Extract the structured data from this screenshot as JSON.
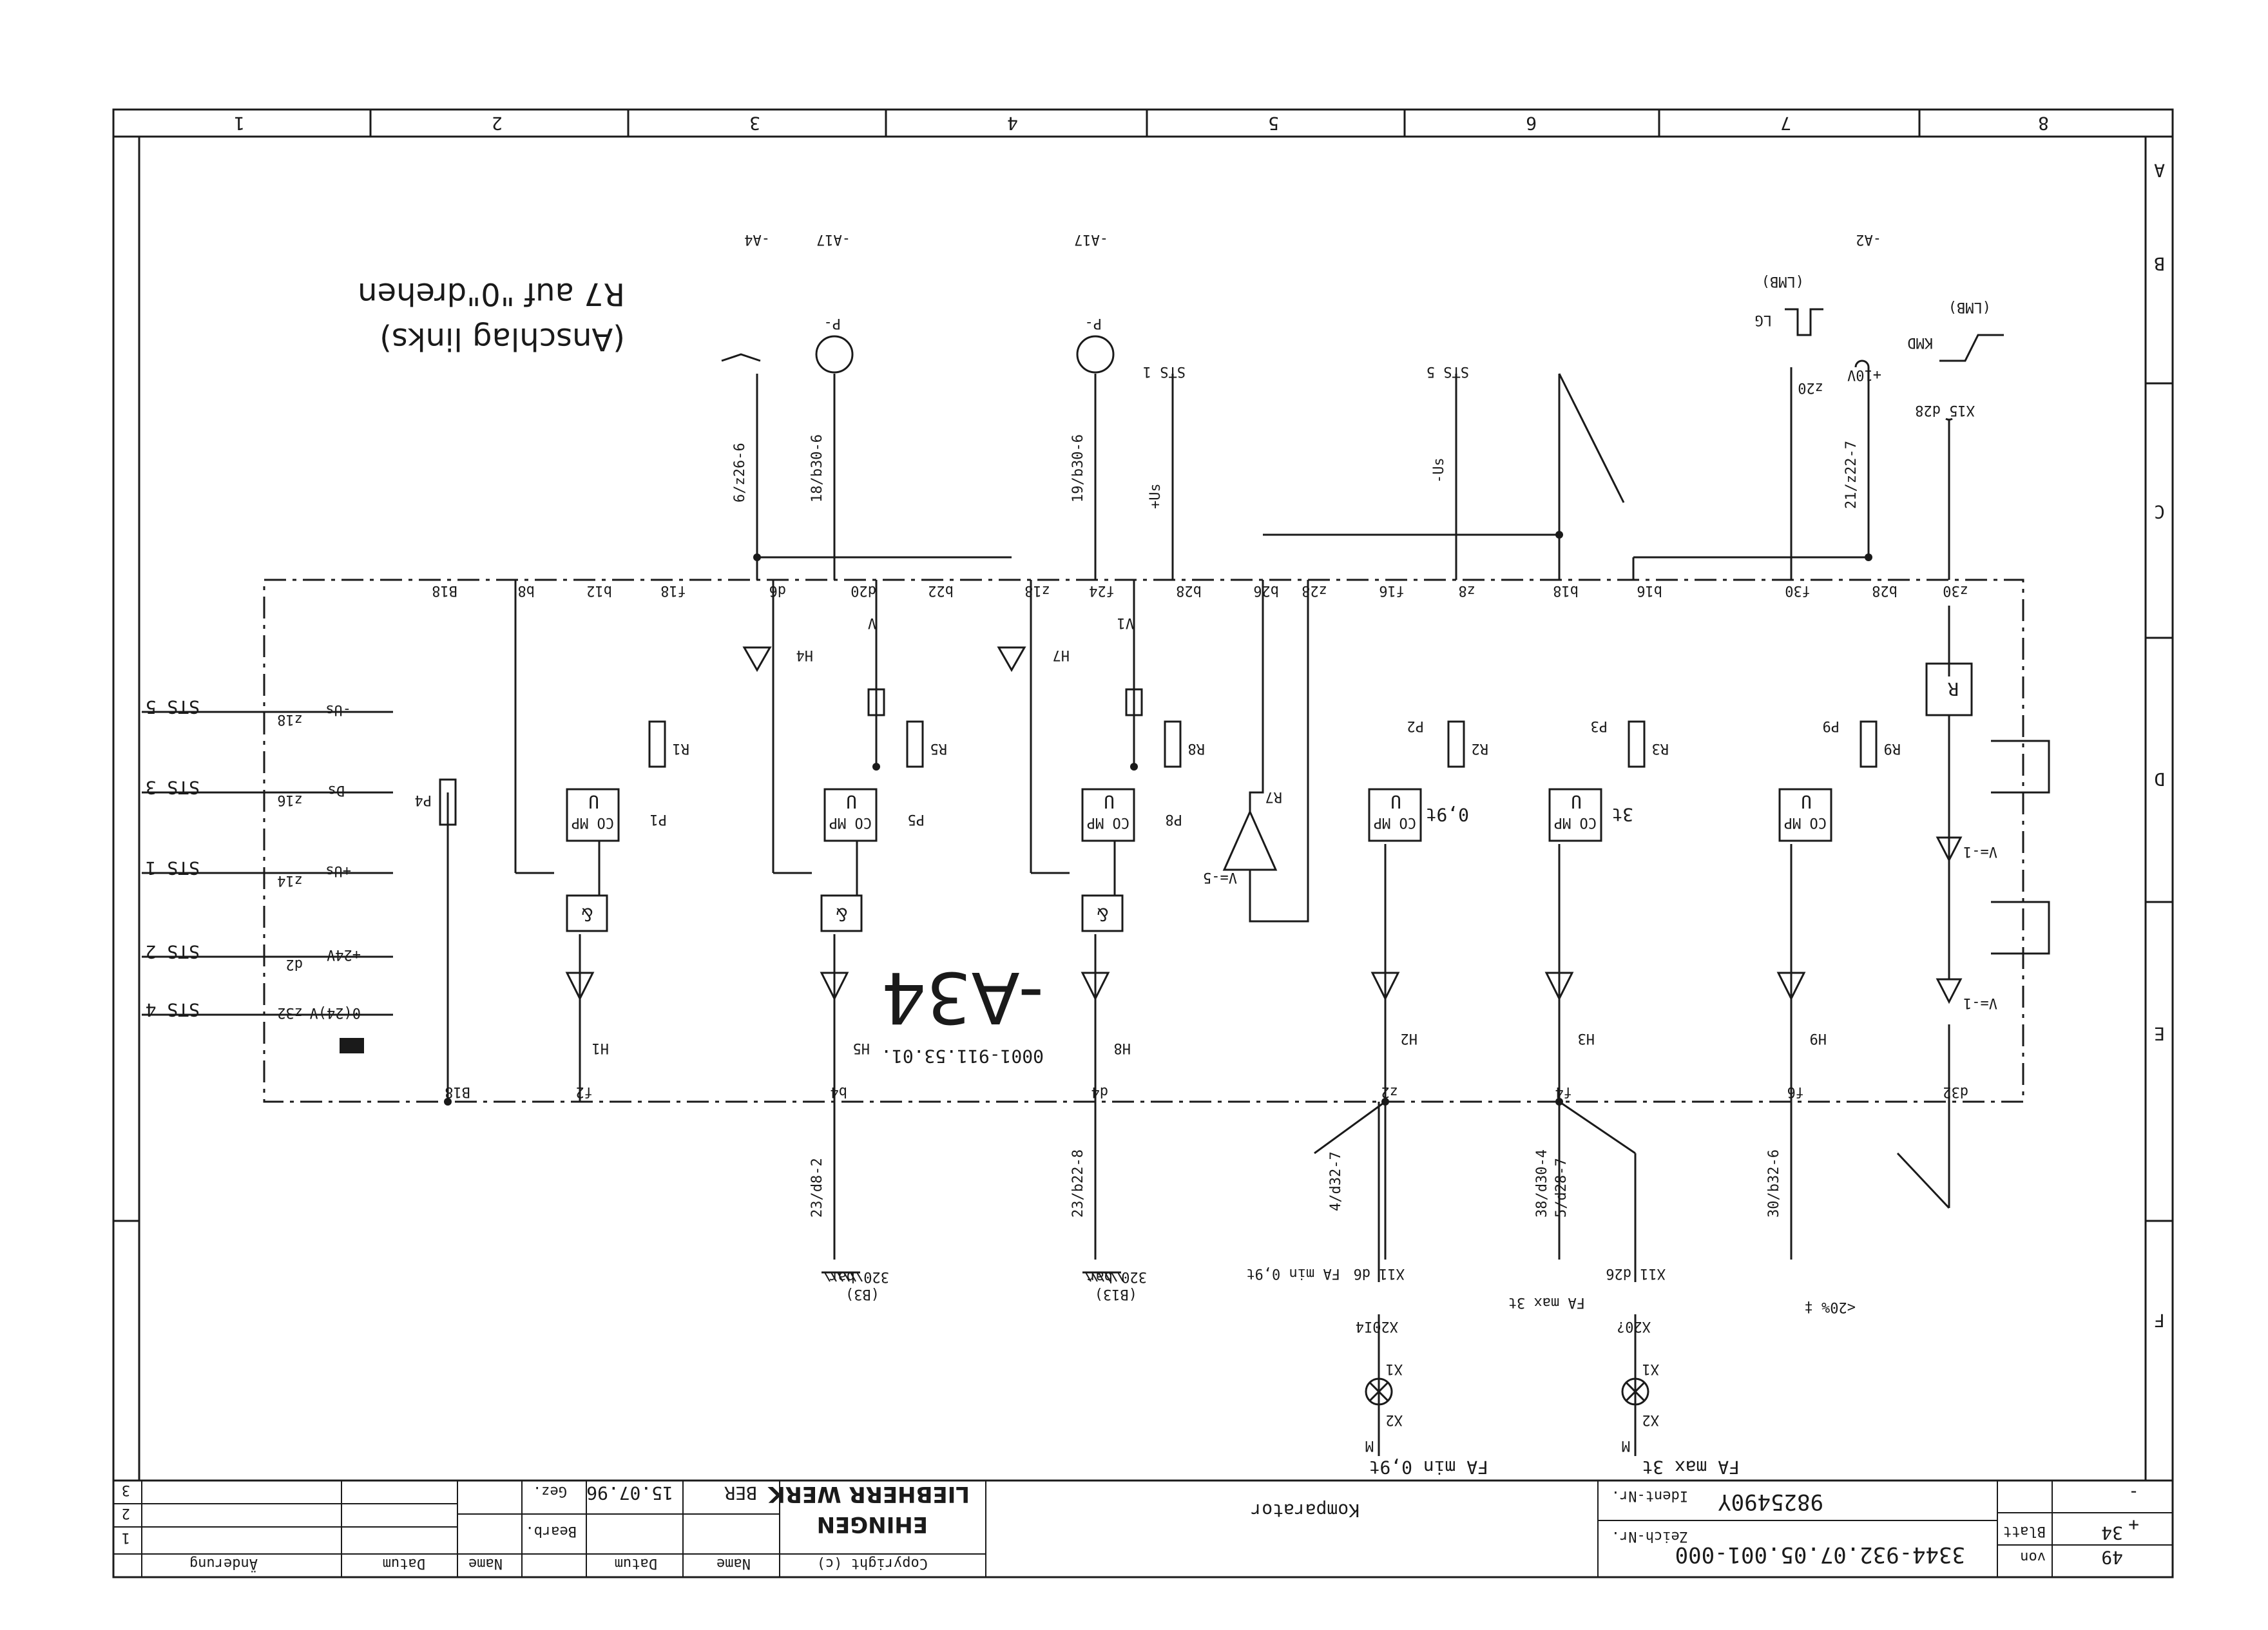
{
  "title_block": {
    "description": "Komparator",
    "zeich_nr_label": "Zeich-Nr.",
    "zeich_nr_value": "3344-932.07.05.001-000",
    "ident_nr_label": "Ident-Nr.",
    "ident_nr_value": "9825490Y",
    "blatt_label": "Blatt",
    "blatt_value": "34",
    "von_label": "von",
    "von_value": "49",
    "plus_label": "+",
    "minus_label": "-",
    "company_line1": "LIEBHERR WERK",
    "company_line2": "EHINGEN",
    "copyright": "Copyright (c)",
    "name_col": "Name",
    "datum_col": "Datum",
    "bearb_label": "Bearb.",
    "gez_label": "Gez.",
    "gez_date": "15.07.96",
    "gez_name": "BER",
    "rev_name": "Name",
    "rev_datum": "Datum",
    "rev_aenderung": "Änderung",
    "rev_rows": [
      "1",
      "2",
      "3"
    ]
  },
  "grid": {
    "columns": [
      "8",
      "7",
      "6",
      "5",
      "4",
      "3",
      "2",
      "1"
    ],
    "rows": [
      "F",
      "E",
      "D",
      "C",
      "B",
      "A"
    ]
  },
  "module": {
    "name": "-A34",
    "part": "0001-911.53.01."
  },
  "note": {
    "line1": "R7 auf \"0\"drehen",
    "line2": "(Anschlag links)"
  },
  "top_labels": {
    "fa_max": "FA max 3t",
    "fa_min": "FA min 0,9t",
    "x2_top": "X2",
    "x1_top": "X1",
    "x2_left": "X2",
    "x1_left": "X1",
    "m_left": "M",
    "m_right": "M",
    "x20_7": "X20?",
    "x20_14": "X20I4",
    "x11_d26": "X11 d26",
    "x11_d6": "X11 d6",
    "fa_max_3t": "FA max\n3t",
    "fa_min_09t": "FA min\n0,9t",
    "pct20": "<20% ‡",
    "bar_left": "320 bar",
    "bar_right": "320 bar",
    "b13": "(B13)",
    "b13b": "(B3)"
  },
  "wire_labels": {
    "w1": "30/b32-6",
    "w2": "38/d30-4",
    "w3": "5/d28-7",
    "w4": "4/d32-7",
    "w5": "23/b22-8",
    "w6": "23/d8-2",
    "w7": "21/z22-7",
    "w8": "19/b30-6",
    "w9": "18/b30-6",
    "w10": "6/z26-6"
  },
  "pins_top": [
    "d32",
    "f6",
    "f4",
    "z2",
    "d4",
    "b4",
    "f2",
    "B18"
  ],
  "pins_bottom": [
    "z30",
    "b28",
    "f30",
    "b16",
    "b18",
    "z8",
    "f16",
    "z28",
    "b26",
    "b28",
    "f24",
    "z18",
    "b22",
    "d20",
    "d6",
    "f18",
    "b12",
    "b8",
    "B18"
  ],
  "led_labels": [
    "H9",
    "H3",
    "H2",
    "H8",
    "H5",
    "H1",
    "H7",
    "H4"
  ],
  "comparator_label": "CO MP",
  "comparator_sym": "U",
  "and_label": "&",
  "pot_labels": [
    "R9",
    "R3",
    "R2",
    "R8",
    "R5",
    "R1",
    "R7",
    "P4"
  ],
  "p_labels": [
    "P9",
    "P3",
    "P2",
    "P8",
    "P5",
    "P1"
  ],
  "cmp_values": [
    "3t",
    "0,9t"
  ],
  "amp_labels": [
    "V=-1",
    "V=-1",
    "V=-5"
  ],
  "r_box": "R",
  "right_side": {
    "sts4": "STS 4",
    "sts2": "STS 2",
    "sts1": "STS 1",
    "sts3": "STS 3",
    "sts5": "STS 5",
    "z32": "z32",
    "d2": "d2",
    "z14": "z14",
    "z16": "z16",
    "z18": "z18",
    "v24": "0(24)V",
    "p24": "+24V",
    "pus": "+Us",
    "ds": "Ds",
    "mus": "-Us"
  },
  "bottom_labels": {
    "x15": "X15 d28",
    "plus10": "+10V",
    "z20": "z20",
    "sts5": "STS 5",
    "minus_us": "-Us",
    "sts1": "STS 1",
    "plus_us": "+Us",
    "v1": "V1",
    "v": "V",
    "kmd": "KMD",
    "lg": "LG",
    "lmb1": "(LMB)",
    "lmb2": "(LMB)",
    "a2": "-A2",
    "a17a": "-A17",
    "a17b": "-A17",
    "a4": "-A4",
    "p_minus1": "P-",
    "p_minus2": "P-"
  }
}
